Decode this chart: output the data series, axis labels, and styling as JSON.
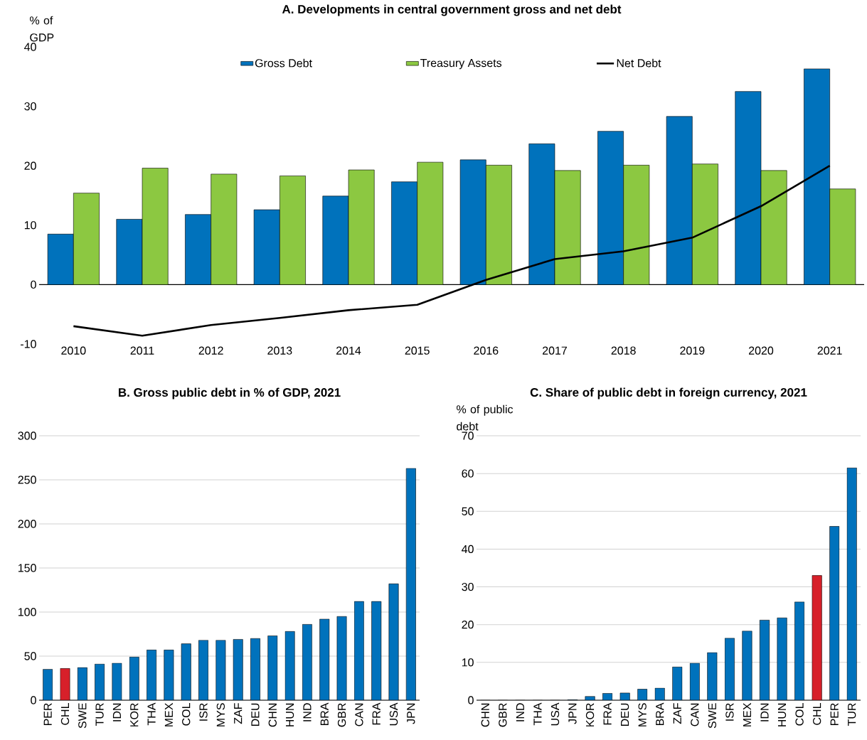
{
  "chart_data": [
    {
      "type": "bar",
      "title": "A. Developments in central government gross and net debt",
      "ylabel": "% of GDP",
      "categories": [
        "2010",
        "2011",
        "2012",
        "2013",
        "2014",
        "2015",
        "2016",
        "2017",
        "2018",
        "2019",
        "2020",
        "2021"
      ],
      "series": [
        {
          "name": "Gross Debt",
          "color": "#0072bc",
          "values": [
            8.5,
            11,
            11.8,
            12.6,
            14.9,
            17.3,
            21,
            23.7,
            25.8,
            28.3,
            32.5,
            36.3
          ]
        },
        {
          "name": "Treasury Assets",
          "color": "#8cc841",
          "values": [
            15.4,
            19.6,
            18.6,
            18.3,
            19.3,
            20.6,
            20.1,
            19.2,
            20.1,
            20.3,
            19.2,
            16.1
          ]
        },
        {
          "name": "Net Debt",
          "type": "line",
          "color": "#000000",
          "values": [
            -7,
            -8.6,
            -6.8,
            -5.6,
            -4.3,
            -3.4,
            0.8,
            4.3,
            5.6,
            7.9,
            13.2,
            20
          ]
        }
      ],
      "ylim": [
        -10,
        40
      ],
      "yticks": [
        -10,
        0,
        10,
        20,
        30,
        40
      ],
      "legend": "top"
    },
    {
      "type": "bar",
      "title": "B. Gross public debt in % of GDP, 2021",
      "categories": [
        "PER",
        "CHL",
        "SWE",
        "TUR",
        "IDN",
        "KOR",
        "THA",
        "MEX",
        "COL",
        "ISR",
        "MYS",
        "ZAF",
        "DEU",
        "CHN",
        "HUN",
        "IND",
        "BRA",
        "GBR",
        "CAN",
        "FRA",
        "USA",
        "JPN"
      ],
      "values": [
        35,
        36,
        37,
        41,
        42,
        49,
        57,
        57,
        64,
        68,
        68,
        69,
        70,
        73,
        78,
        86,
        92,
        95,
        112,
        112,
        132,
        263
      ],
      "colors": [
        "#0072bc",
        "#d7202a",
        "#0072bc",
        "#0072bc",
        "#0072bc",
        "#0072bc",
        "#0072bc",
        "#0072bc",
        "#0072bc",
        "#0072bc",
        "#0072bc",
        "#0072bc",
        "#0072bc",
        "#0072bc",
        "#0072bc",
        "#0072bc",
        "#0072bc",
        "#0072bc",
        "#0072bc",
        "#0072bc",
        "#0072bc",
        "#0072bc"
      ],
      "ylim": [
        0,
        300
      ],
      "yticks": [
        0,
        50,
        100,
        150,
        200,
        250,
        300
      ],
      "grid": "y"
    },
    {
      "type": "bar",
      "title": "C. Share of public debt in foreign currency, 2021",
      "ylabel": "% of public debt",
      "categories": [
        "CHN",
        "GBR",
        "IND",
        "THA",
        "USA",
        "JPN",
        "KOR",
        "FRA",
        "DEU",
        "MYS",
        "BRA",
        "ZAF",
        "CAN",
        "SWE",
        "ISR",
        "MEX",
        "IDN",
        "HUN",
        "COL",
        "CHL",
        "PER",
        "TUR"
      ],
      "values": [
        0,
        0,
        0,
        0,
        0,
        0.1,
        1,
        1.8,
        1.9,
        2.9,
        3.2,
        8.8,
        9.8,
        12.6,
        16.4,
        18.3,
        21.2,
        21.8,
        26,
        33,
        46,
        61.5
      ],
      "colors": [
        "#0072bc",
        "#0072bc",
        "#0072bc",
        "#0072bc",
        "#0072bc",
        "#0072bc",
        "#0072bc",
        "#0072bc",
        "#0072bc",
        "#0072bc",
        "#0072bc",
        "#0072bc",
        "#0072bc",
        "#0072bc",
        "#0072bc",
        "#0072bc",
        "#0072bc",
        "#0072bc",
        "#0072bc",
        "#d7202a",
        "#0072bc",
        "#0072bc"
      ],
      "ylim": [
        0,
        70
      ],
      "yticks": [
        0,
        10,
        20,
        30,
        40,
        50,
        60,
        70
      ],
      "grid": "y"
    }
  ]
}
